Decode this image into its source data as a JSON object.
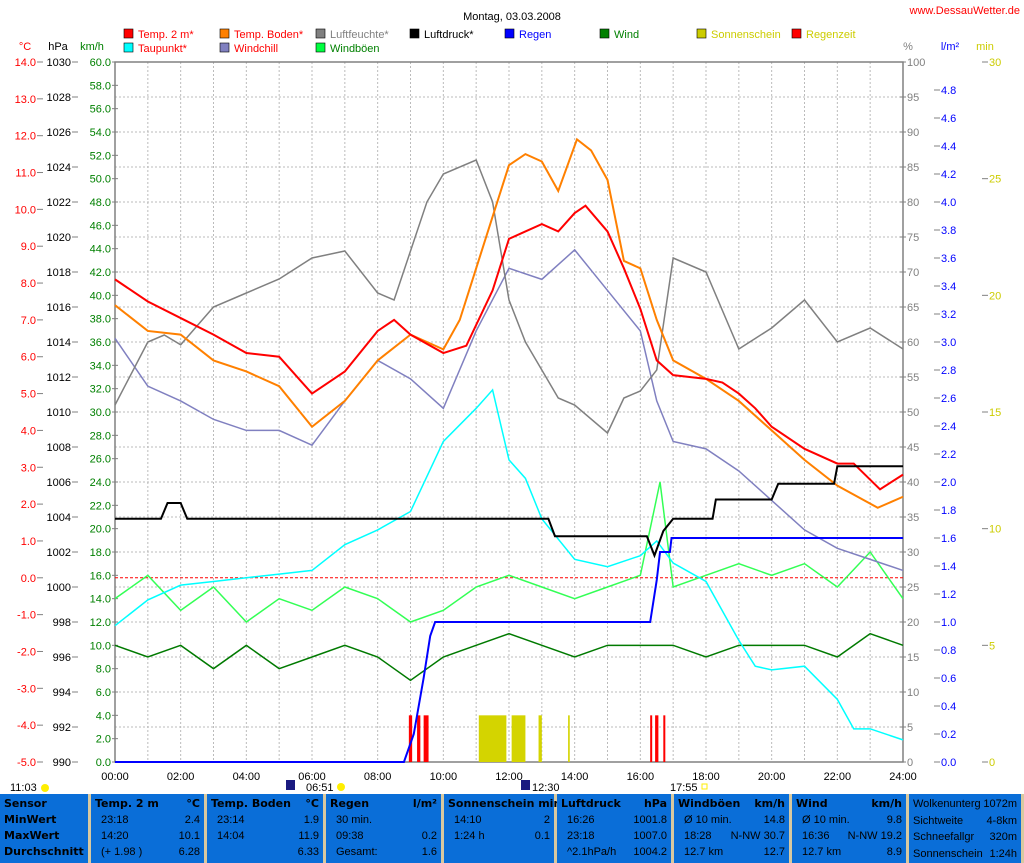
{
  "chart_data": {
    "type": "line",
    "title": "Montag, 03.03.2008",
    "site": "www.DessauWetter.de",
    "axis_units": {
      "temp": "°C",
      "pressure": "hPa",
      "wind": "km/h",
      "humidity": "%",
      "rain": "l/m²",
      "sun": "min"
    },
    "ylim": {
      "temp": [
        -5,
        14
      ],
      "pressure": [
        990,
        1030
      ],
      "wind": [
        0,
        60
      ],
      "humidity": [
        0,
        100
      ],
      "rain": [
        0,
        5
      ],
      "sun": [
        0,
        30
      ]
    },
    "x_ticks": [
      "00:00",
      "02:00",
      "04:00",
      "06:00",
      "08:00",
      "10:00",
      "12:00",
      "14:00",
      "16:00",
      "18:00",
      "20:00",
      "22:00",
      "24:00"
    ],
    "grid": true,
    "legend": [
      {
        "label": "Temp. 2 m*",
        "color": "#ff0000",
        "text_color": "#ff0000"
      },
      {
        "label": "Temp. Boden*",
        "color": "#ff8000",
        "text_color": "#ff0000"
      },
      {
        "label": "Luftfeuchte*",
        "color": "#808080",
        "text_color": "#808080"
      },
      {
        "label": "Luftdruck*",
        "color": "#000000",
        "text_color": "#000000"
      },
      {
        "label": "Regen",
        "color": "#0000ff",
        "text_color": "#0000ff"
      },
      {
        "label": "Wind",
        "color": "#008000",
        "text_color": "#008000"
      },
      {
        "label": "Sonnenschein",
        "color": "#cccc00",
        "text_color": "#cccc00"
      },
      {
        "label": "Regenzeit",
        "color": "#ff0000",
        "text_color": "#cccc00"
      },
      {
        "label": "Taupunkt*",
        "color": "#00ffff",
        "text_color": "#ff0000"
      },
      {
        "label": "Windchill",
        "color": "#8080c0",
        "text_color": "#ff0000"
      },
      {
        "label": "Windböen",
        "color": "#00ff40",
        "text_color": "#008000"
      }
    ],
    "series": [
      {
        "name": "Windböen",
        "axis": "wind",
        "color": "#33ff55",
        "points": [
          [
            0,
            14
          ],
          [
            1,
            16
          ],
          [
            2,
            13
          ],
          [
            3,
            15
          ],
          [
            4,
            12
          ],
          [
            5,
            14
          ],
          [
            6,
            13
          ],
          [
            7,
            15
          ],
          [
            8,
            14
          ],
          [
            9,
            12
          ],
          [
            10,
            13
          ],
          [
            11,
            15
          ],
          [
            12,
            16
          ],
          [
            13,
            15
          ],
          [
            14,
            14
          ],
          [
            15,
            15
          ],
          [
            16,
            16
          ],
          [
            16.6,
            24
          ],
          [
            17,
            15
          ],
          [
            18,
            16
          ],
          [
            19,
            17
          ],
          [
            20,
            16
          ],
          [
            21,
            17
          ],
          [
            22,
            15
          ],
          [
            23,
            18
          ],
          [
            24,
            14
          ]
        ]
      },
      {
        "name": "Wind",
        "axis": "wind",
        "color": "#007a00",
        "points": [
          [
            0,
            10
          ],
          [
            1,
            9
          ],
          [
            2,
            10
          ],
          [
            3,
            8
          ],
          [
            4,
            10
          ],
          [
            5,
            8
          ],
          [
            6,
            9
          ],
          [
            7,
            10
          ],
          [
            8,
            9
          ],
          [
            9,
            7
          ],
          [
            10,
            9
          ],
          [
            11,
            10
          ],
          [
            12,
            11
          ],
          [
            13,
            10
          ],
          [
            14,
            9
          ],
          [
            15,
            10
          ],
          [
            16,
            10
          ],
          [
            17,
            10
          ],
          [
            18,
            9
          ],
          [
            19,
            10
          ],
          [
            20,
            10
          ],
          [
            21,
            10
          ],
          [
            22,
            9
          ],
          [
            23,
            11
          ],
          [
            24,
            10
          ]
        ]
      },
      {
        "name": "Windchill",
        "axis": "temp",
        "color": "#8080c0",
        "points": [
          [
            0,
            6.5
          ],
          [
            1,
            5.2
          ],
          [
            2,
            4.8
          ],
          [
            3,
            4.3
          ],
          [
            4,
            4.0
          ],
          [
            5,
            4.0
          ],
          [
            6,
            3.6
          ],
          [
            7,
            4.8
          ],
          [
            8,
            5.9
          ],
          [
            9,
            5.4
          ],
          [
            10,
            4.6
          ],
          [
            11,
            6.7
          ],
          [
            12,
            8.4
          ],
          [
            13,
            8.1
          ],
          [
            14,
            8.9
          ],
          [
            15,
            7.8
          ],
          [
            16,
            6.7
          ],
          [
            16.5,
            4.8
          ],
          [
            17,
            3.7
          ],
          [
            18,
            3.5
          ],
          [
            19,
            2.9
          ],
          [
            20,
            2.1
          ],
          [
            21,
            1.3
          ],
          [
            22,
            0.8
          ],
          [
            23,
            0.5
          ],
          [
            24,
            0.2
          ]
        ]
      },
      {
        "name": "Luftfeuchte*",
        "axis": "humidity",
        "color": "#808080",
        "points": [
          [
            0,
            51
          ],
          [
            1,
            60
          ],
          [
            1.5,
            61
          ],
          [
            2,
            59.6
          ],
          [
            3,
            65
          ],
          [
            4,
            67
          ],
          [
            5,
            69
          ],
          [
            6,
            72
          ],
          [
            7,
            73
          ],
          [
            8,
            67
          ],
          [
            8.5,
            66
          ],
          [
            9,
            73
          ],
          [
            9.5,
            80
          ],
          [
            10,
            84
          ],
          [
            11,
            86
          ],
          [
            11.5,
            80
          ],
          [
            12,
            66
          ],
          [
            12.5,
            60
          ],
          [
            13,
            56
          ],
          [
            13.5,
            52
          ],
          [
            14,
            51
          ],
          [
            15,
            47
          ],
          [
            15.5,
            52
          ],
          [
            16,
            53
          ],
          [
            16.5,
            56
          ],
          [
            17,
            72
          ],
          [
            18,
            70
          ],
          [
            19,
            59
          ],
          [
            20,
            62
          ],
          [
            21,
            66
          ],
          [
            22,
            60
          ],
          [
            23,
            62
          ],
          [
            24,
            59
          ]
        ]
      },
      {
        "name": "Taupunkt*",
        "axis": "temp",
        "color": "#00ffff",
        "points": [
          [
            0,
            -1.3
          ],
          [
            1,
            -0.6
          ],
          [
            2,
            -0.2
          ],
          [
            3,
            -0.1
          ],
          [
            4,
            0
          ],
          [
            5,
            0.1
          ],
          [
            6,
            0.2
          ],
          [
            7,
            0.9
          ],
          [
            8,
            1.3
          ],
          [
            9,
            1.8
          ],
          [
            10,
            3.7
          ],
          [
            11,
            4.6
          ],
          [
            11.5,
            5.1
          ],
          [
            12,
            3.2
          ],
          [
            12.5,
            2.7
          ],
          [
            13,
            1.6
          ],
          [
            14,
            0.5
          ],
          [
            15,
            0.3
          ],
          [
            16,
            0.6
          ],
          [
            16.5,
            1.0
          ],
          [
            17,
            0.4
          ],
          [
            18,
            -0.1
          ],
          [
            19,
            -1.7
          ],
          [
            19.5,
            -2.4
          ],
          [
            20,
            -2.5
          ],
          [
            21,
            -2.4
          ],
          [
            22,
            -3.3
          ],
          [
            22.5,
            -4.1
          ],
          [
            23,
            -4.1
          ],
          [
            24,
            -4.4
          ]
        ]
      },
      {
        "name": "Temp. Boden*",
        "axis": "temp",
        "color": "#ff8000",
        "points": [
          [
            0,
            7.4
          ],
          [
            1,
            6.7
          ],
          [
            2,
            6.6
          ],
          [
            3,
            5.9
          ],
          [
            4,
            5.6
          ],
          [
            5,
            5.2
          ],
          [
            6,
            4.1
          ],
          [
            7,
            4.8
          ],
          [
            8,
            5.9
          ],
          [
            9,
            6.6
          ],
          [
            10,
            6.2
          ],
          [
            10.5,
            7.0
          ],
          [
            11,
            8.4
          ],
          [
            11.5,
            9.8
          ],
          [
            12,
            11.2
          ],
          [
            12.5,
            11.5
          ],
          [
            13,
            11.3
          ],
          [
            13.5,
            10.5
          ],
          [
            14.07,
            11.9
          ],
          [
            14.5,
            11.6
          ],
          [
            15,
            10.8
          ],
          [
            15.5,
            8.6
          ],
          [
            16,
            8.4
          ],
          [
            16.5,
            7.0
          ],
          [
            17,
            5.9
          ],
          [
            18,
            5.4
          ],
          [
            19,
            4.8
          ],
          [
            20,
            4.0
          ],
          [
            21,
            3.2
          ],
          [
            22,
            2.5
          ],
          [
            23.23,
            1.9
          ],
          [
            24,
            2.2
          ]
        ]
      },
      {
        "name": "Temp. 2 m*",
        "axis": "temp",
        "color": "#ff0000",
        "points": [
          [
            0,
            8.1
          ],
          [
            1,
            7.5
          ],
          [
            2,
            7.05
          ],
          [
            3,
            6.6
          ],
          [
            4,
            6.1
          ],
          [
            5,
            6.0
          ],
          [
            6,
            5.0
          ],
          [
            7,
            5.6
          ],
          [
            8,
            6.7
          ],
          [
            8.5,
            7.0
          ],
          [
            9,
            6.6
          ],
          [
            10,
            6.1
          ],
          [
            10.7,
            6.3
          ],
          [
            11.5,
            7.8
          ],
          [
            12,
            9.2
          ],
          [
            12.5,
            9.4
          ],
          [
            13,
            9.6
          ],
          [
            13.5,
            9.4
          ],
          [
            14,
            9.9
          ],
          [
            14.33,
            10.1
          ],
          [
            15,
            9.4
          ],
          [
            15.5,
            8.4
          ],
          [
            16,
            7.3
          ],
          [
            16.5,
            5.9
          ],
          [
            17,
            5.5
          ],
          [
            18,
            5.4
          ],
          [
            18.5,
            5.3
          ],
          [
            19,
            5.0
          ],
          [
            19.5,
            4.6
          ],
          [
            20,
            4.1
          ],
          [
            21,
            3.5
          ],
          [
            22,
            3.1
          ],
          [
            22.5,
            3.1
          ],
          [
            23.3,
            2.4
          ],
          [
            24,
            2.8
          ]
        ]
      },
      {
        "name": "Luftdruck*",
        "axis": "pressure",
        "color": "#000000",
        "points": [
          [
            0,
            1003.9
          ],
          [
            1.4,
            1003.9
          ],
          [
            1.6,
            1004.8
          ],
          [
            2.0,
            1004.8
          ],
          [
            2.2,
            1003.9
          ],
          [
            13.2,
            1003.9
          ],
          [
            13.4,
            1002.9
          ],
          [
            16.2,
            1002.9
          ],
          [
            16.43,
            1001.8
          ],
          [
            16.7,
            1003.2
          ],
          [
            17.0,
            1003.9
          ],
          [
            18.2,
            1003.9
          ],
          [
            18.3,
            1005.0
          ],
          [
            20.0,
            1005.0
          ],
          [
            20.2,
            1005.9
          ],
          [
            21.9,
            1005.9
          ],
          [
            22.0,
            1006.9
          ],
          [
            24,
            1006.9
          ]
        ]
      },
      {
        "name": "Regen",
        "axis": "rain",
        "color": "#0000ff",
        "points": [
          [
            0,
            0
          ],
          [
            8.8,
            0
          ],
          [
            9.1,
            0.2
          ],
          [
            9.4,
            0.6
          ],
          [
            9.6,
            0.9
          ],
          [
            9.75,
            1.0
          ],
          [
            16.3,
            1.0
          ],
          [
            16.5,
            1.3
          ],
          [
            16.6,
            1.5
          ],
          [
            16.9,
            1.5
          ],
          [
            16.95,
            1.6
          ],
          [
            24,
            1.6
          ]
        ]
      }
    ],
    "sunshine_intervals": [
      [
        11.08,
        11.92,
        2
      ],
      [
        12.08,
        12.5,
        2
      ],
      [
        12.9,
        13.0,
        2
      ],
      [
        13.8,
        13.85,
        2
      ]
    ],
    "rain_time_intervals": [
      [
        8.95,
        9.05
      ],
      [
        9.2,
        9.3
      ],
      [
        9.4,
        9.55
      ],
      [
        16.3,
        16.35
      ],
      [
        16.45,
        16.55
      ],
      [
        16.7,
        16.75
      ]
    ],
    "zero_line": {
      "axis": "temp",
      "value": 0,
      "color": "#ff0000"
    },
    "astro": {
      "left": "11:03",
      "sunrise": "06:51",
      "noon": "12:30",
      "sunset": "17:55"
    }
  },
  "table": {
    "sensor": {
      "title": "Sensor",
      "rows": [
        "MinWert",
        "MaxWert",
        "Durchschnitt"
      ]
    },
    "temp2m": {
      "title": "Temp. 2 m",
      "unit": "°C",
      "rows": [
        [
          "23:18",
          "2.4"
        ],
        [
          "14:20",
          "10.1"
        ],
        [
          "(+ 1.98 )",
          "6.28"
        ]
      ]
    },
    "boden": {
      "title": "Temp. Boden",
      "unit": "°C",
      "rows": [
        [
          "23:14",
          "1.9"
        ],
        [
          "14:04",
          "11.9"
        ],
        [
          "",
          "6.33"
        ]
      ]
    },
    "regen": {
      "title": "Regen",
      "unit": "l/m²",
      "rows": [
        [
          "30 min.",
          ""
        ],
        [
          "09:38",
          "0.2"
        ],
        [
          "Gesamt:",
          "1.6"
        ]
      ]
    },
    "sonne": {
      "title": "Sonnenschein min",
      "unit": "",
      "rows": [
        [
          "",
          ""
        ],
        [
          "14:10",
          "2"
        ],
        [
          "1:24 h",
          "0.1"
        ]
      ]
    },
    "druck": {
      "title": "Luftdruck",
      "unit": "hPa",
      "rows": [
        [
          "16:26",
          "1001.8"
        ],
        [
          "23:18",
          "1007.0"
        ],
        [
          "^2.1hPa/h",
          "1004.2"
        ]
      ]
    },
    "boeen": {
      "title": "Windböen",
      "unit": "km/h",
      "rows": [
        [
          "Ø 10 min.",
          "14.8"
        ],
        [
          "18:28",
          "N-NW 30.7"
        ],
        [
          "12.7 km",
          "12.7"
        ]
      ]
    },
    "wind": {
      "title": "Wind",
      "unit": "km/h",
      "rows": [
        [
          "Ø 10 min.",
          "9.8"
        ],
        [
          "16:36",
          "N-NW 19.2"
        ],
        [
          "12.7 km",
          "8.9"
        ]
      ]
    },
    "extra": [
      [
        "Wolkenunterg",
        "1072m"
      ],
      [
        "Sichtweite",
        "4-8km"
      ],
      [
        "Schneefallgr",
        "320m"
      ],
      [
        "Sonnenschein",
        "1:24h"
      ]
    ]
  }
}
